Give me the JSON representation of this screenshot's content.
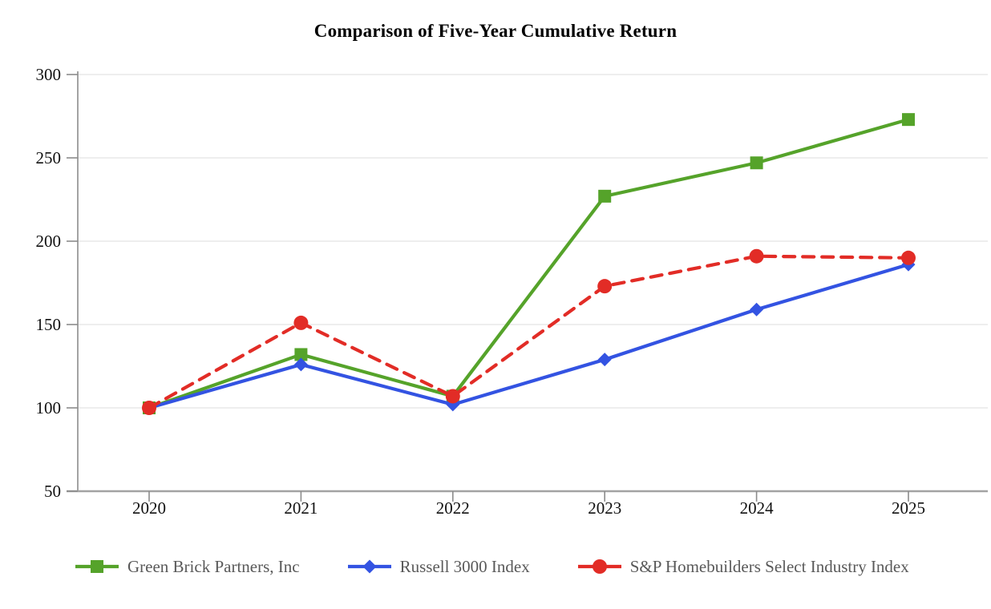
{
  "title": "Comparison of Five-Year Cumulative Return",
  "chart_data": {
    "type": "line",
    "categories": [
      "2020",
      "2021",
      "2022",
      "2023",
      "2024",
      "2025"
    ],
    "series": [
      {
        "name": "Green Brick Partners, Inc",
        "values": [
          100,
          132,
          107,
          227,
          247,
          273
        ],
        "color": "#55a32a",
        "marker": "square",
        "line_style": "solid"
      },
      {
        "name": "Russell 3000 Index",
        "values": [
          100,
          126,
          102,
          129,
          159,
          186
        ],
        "color": "#3353e2",
        "marker": "diamond",
        "line_style": "solid"
      },
      {
        "name": "S&P Homebuilders Select Industry Index",
        "values": [
          100,
          151,
          107,
          173,
          191,
          190
        ],
        "color": "#e22c26",
        "marker": "circle",
        "line_style": "dashed"
      }
    ],
    "title": "Comparison of Five-Year Cumulative Return",
    "xlabel": "",
    "ylabel": "",
    "ylim": [
      50,
      300
    ],
    "yticks": [
      50,
      100,
      150,
      200,
      250,
      300
    ],
    "grid": "horizontal-only",
    "legend_position": "bottom"
  },
  "colors": {
    "background": "#ffffff",
    "gridline": "#e9e9e9",
    "axis_line": "#a3a3a3",
    "tick_mark": "#8c8c8c",
    "axis_text": "#111111",
    "legend_text": "#595959"
  }
}
